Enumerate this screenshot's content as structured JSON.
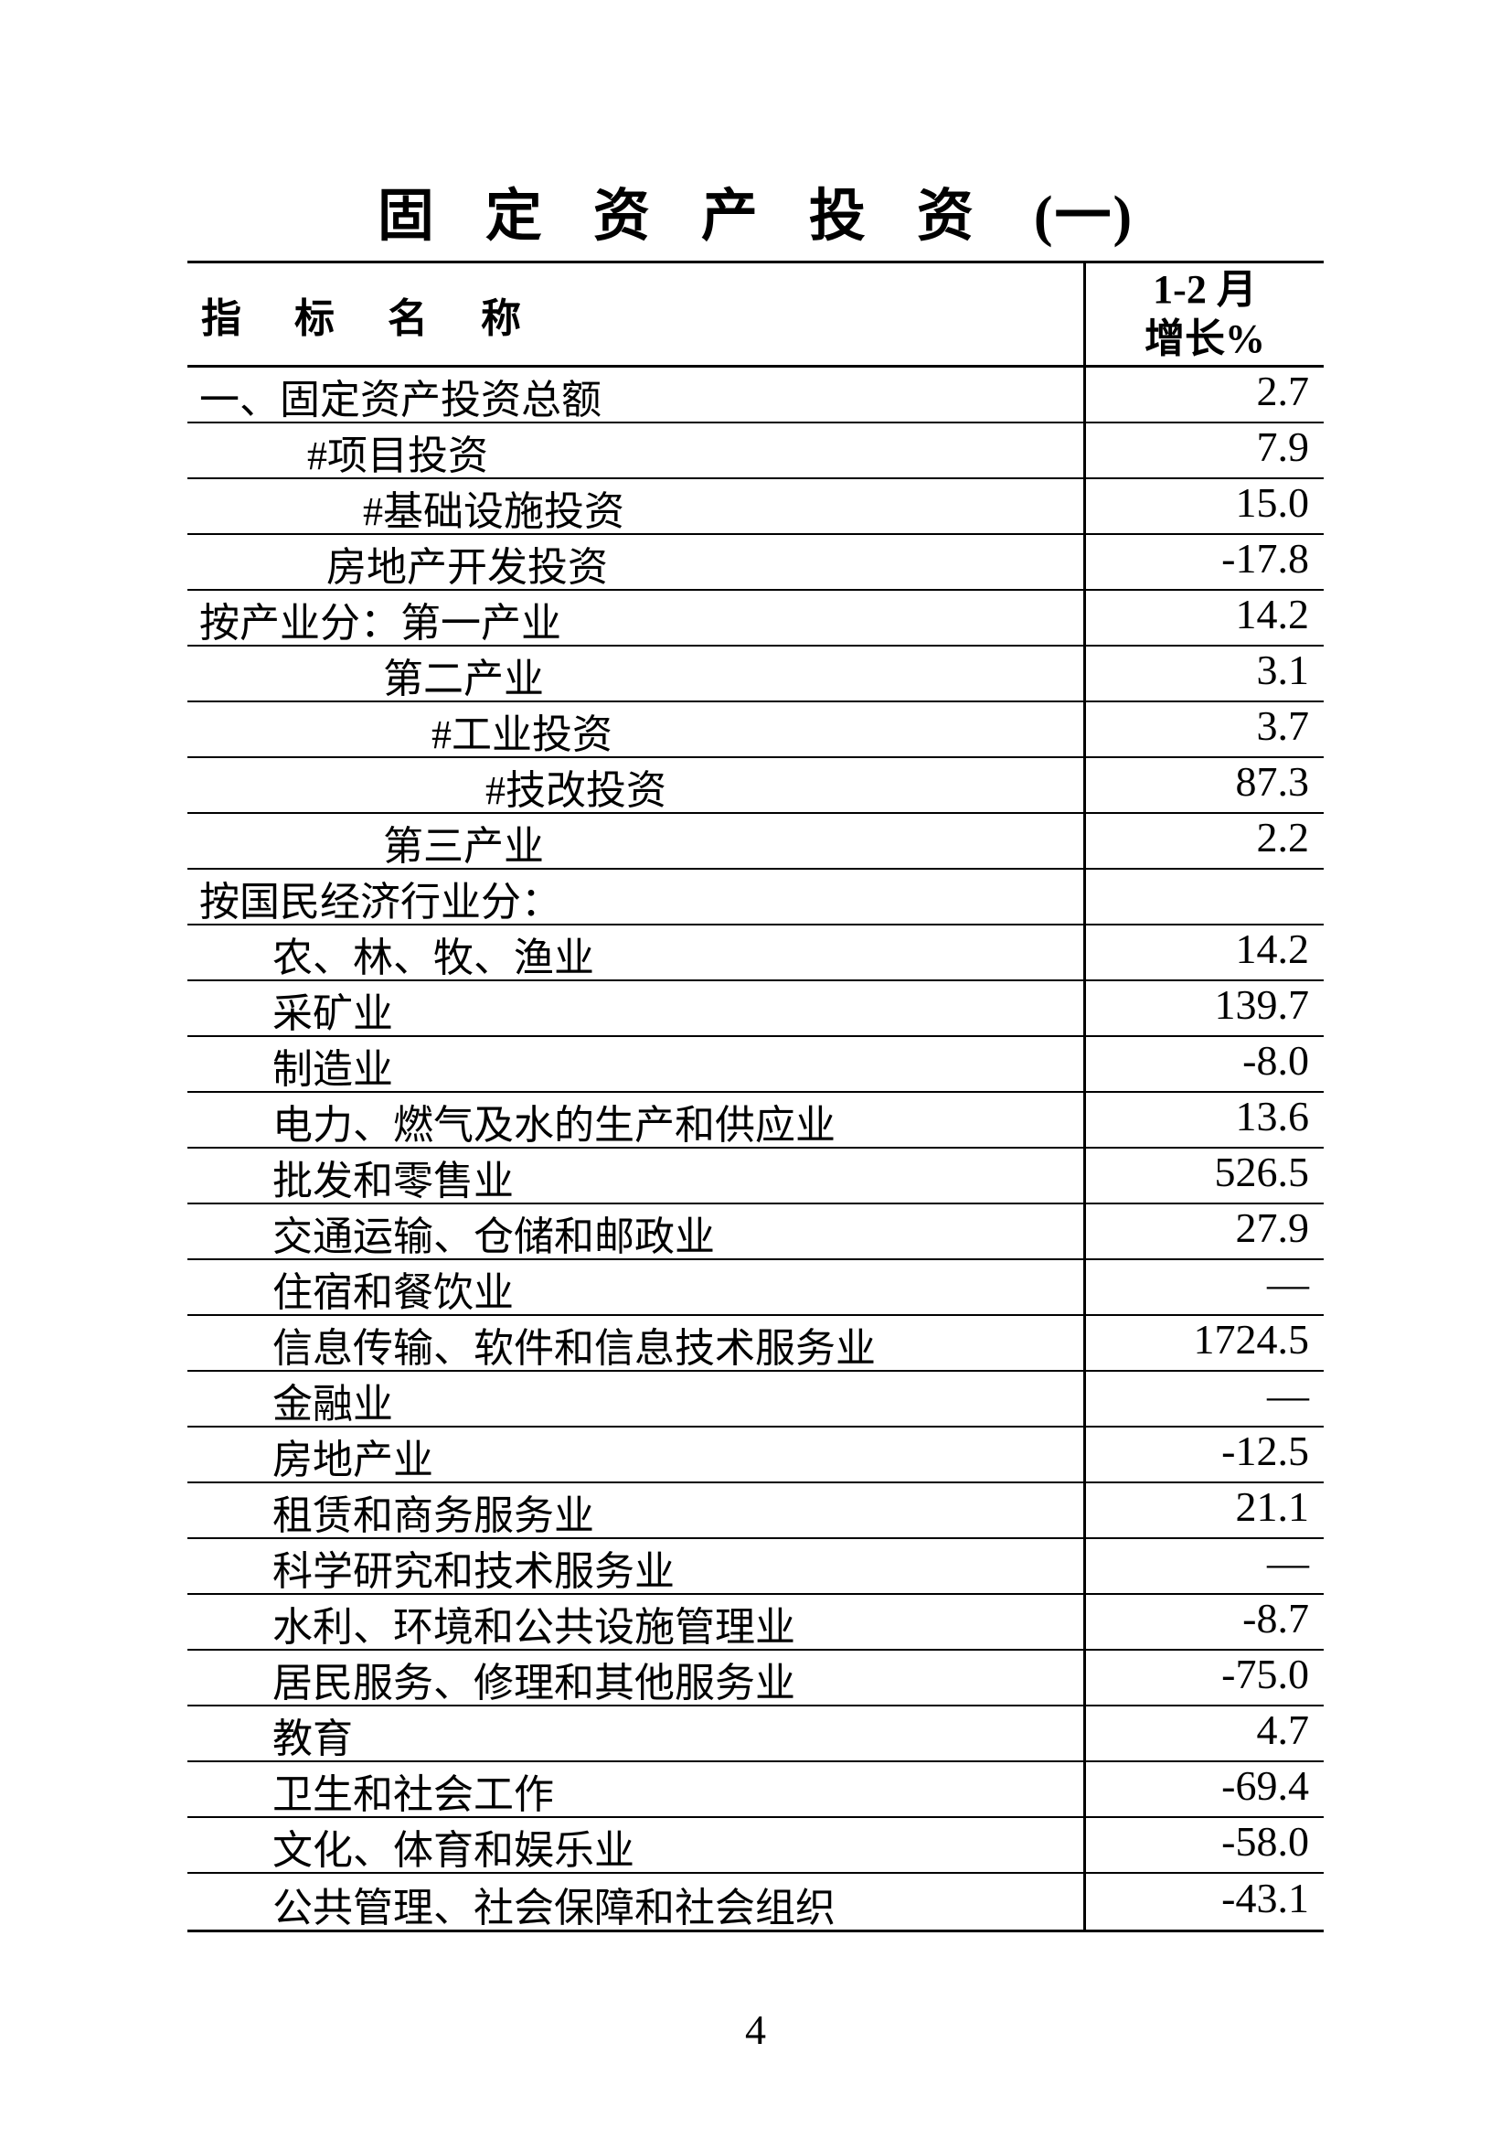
{
  "title": {
    "main": "固定资产投资",
    "suffix": "(一)"
  },
  "table": {
    "header": {
      "indicator": "指标名称",
      "period_line1": "1-2 月",
      "period_line2": "增长%"
    },
    "rows": [
      {
        "label": "一、固定资产投资总额",
        "value": "2.7",
        "indent": 0
      },
      {
        "label": "#项目投资",
        "value": "7.9",
        "indent": 2
      },
      {
        "label": "#基础设施投资",
        "value": "15.0",
        "indent": 4
      },
      {
        "label": "房地产开发投资",
        "value": "-17.8",
        "indent": 3
      },
      {
        "label": "按产业分：第一产业",
        "value": "14.2",
        "indent": 0
      },
      {
        "label": "第二产业",
        "value": "3.1",
        "indent": 5
      },
      {
        "label": "#工业投资",
        "value": "3.7",
        "indent": 6
      },
      {
        "label": "#技改投资",
        "value": "87.3",
        "indent": 7
      },
      {
        "label": "第三产业",
        "value": "2.2",
        "indent": 5
      },
      {
        "label": "按国民经济行业分：",
        "value": "",
        "indent": 0
      },
      {
        "label": "农、林、牧、渔业",
        "value": "14.2",
        "indent": 1
      },
      {
        "label": "采矿业",
        "value": "139.7",
        "indent": 1
      },
      {
        "label": "制造业",
        "value": "-8.0",
        "indent": 1
      },
      {
        "label": "电力、燃气及水的生产和供应业",
        "value": "13.6",
        "indent": 1
      },
      {
        "label": "批发和零售业",
        "value": "526.5",
        "indent": 1
      },
      {
        "label": "交通运输、仓储和邮政业",
        "value": "27.9",
        "indent": 1
      },
      {
        "label": "住宿和餐饮业",
        "value": "—",
        "indent": 1
      },
      {
        "label": "信息传输、软件和信息技术服务业",
        "value": "1724.5",
        "indent": 1
      },
      {
        "label": "金融业",
        "value": "—",
        "indent": 1
      },
      {
        "label": "房地产业",
        "value": "-12.5",
        "indent": 1
      },
      {
        "label": "租赁和商务服务业",
        "value": "21.1",
        "indent": 1
      },
      {
        "label": "科学研究和技术服务业",
        "value": "—",
        "indent": 1
      },
      {
        "label": "水利、环境和公共设施管理业",
        "value": "-8.7",
        "indent": 1
      },
      {
        "label": "居民服务、修理和其他服务业",
        "value": "-75.0",
        "indent": 1
      },
      {
        "label": "教育",
        "value": "4.7",
        "indent": 1
      },
      {
        "label": "卫生和社会工作",
        "value": "-69.4",
        "indent": 1
      },
      {
        "label": "文化、体育和娱乐业",
        "value": "-58.0",
        "indent": 1
      },
      {
        "label": "公共管理、社会保障和社会组织",
        "value": "-43.1",
        "indent": 1
      }
    ]
  },
  "footer": {
    "page_number": "4"
  },
  "colors": {
    "background": "#ffffff",
    "text": "#000000",
    "rule": "#000000"
  }
}
